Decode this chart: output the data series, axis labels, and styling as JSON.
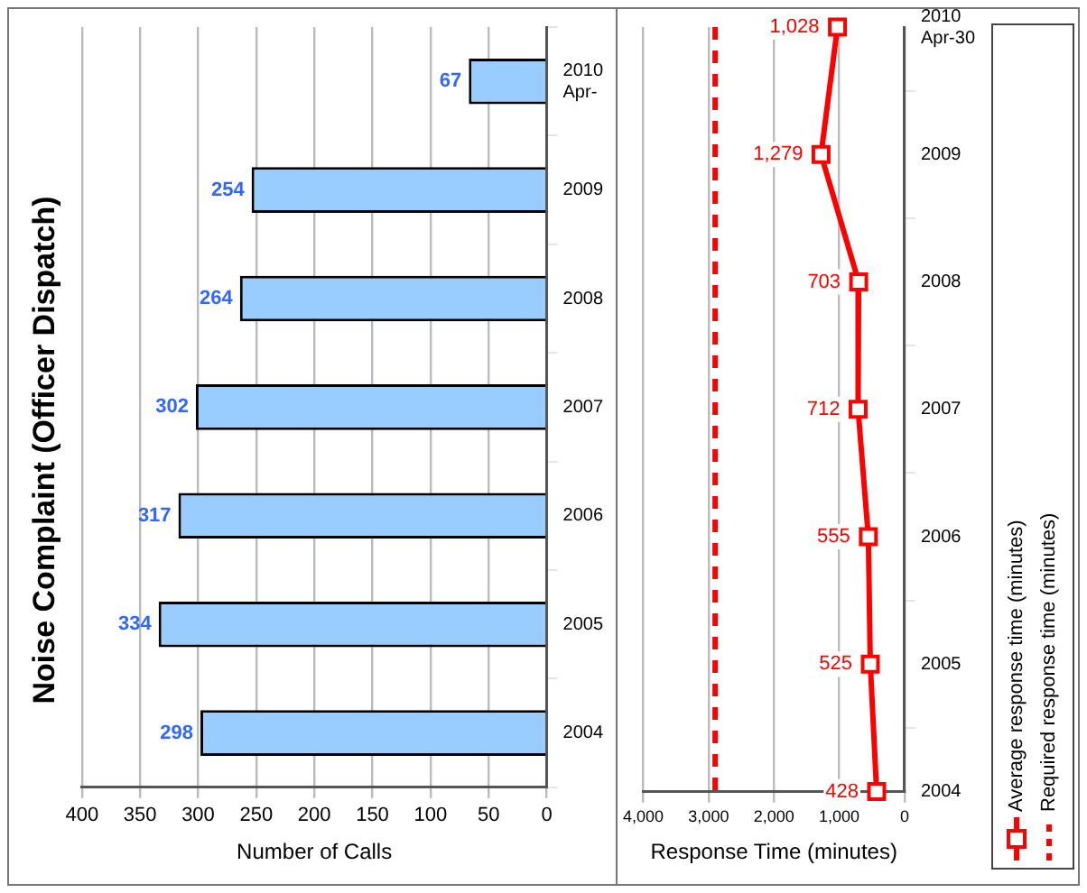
{
  "chart_data": [
    {
      "type": "bar",
      "orientation": "horizontal",
      "title": "Noise Complaint (Officer Dispatch)",
      "xlabel": "Number of Calls",
      "categories": [
        "2010 Apr-",
        "2009",
        "2008",
        "2007",
        "2006",
        "2005",
        "2004"
      ],
      "values": [
        67,
        254,
        264,
        302,
        317,
        334,
        298
      ],
      "color": "#99ccff",
      "xlim": [
        400,
        0
      ],
      "xticks": [
        400,
        350,
        300,
        250,
        200,
        150,
        100,
        50,
        0
      ],
      "grid": "x",
      "data_labels": true
    },
    {
      "type": "line",
      "orientation": "horizontal",
      "xlabel": "Response Time (minutes)",
      "categories": [
        "2010 Apr-30",
        "2009",
        "2008",
        "2007",
        "2006",
        "2005",
        "2004"
      ],
      "series": [
        {
          "name": "Average response time (minutes)",
          "color": "#ff0000",
          "values": [
            1028,
            1279,
            703,
            712,
            555,
            525,
            428
          ],
          "marker": "square",
          "line_style": "solid",
          "value_labels": [
            "1,028",
            "1,279",
            "703",
            "712",
            "555",
            "525",
            "428"
          ]
        },
        {
          "name": "Required response time (minutes)",
          "color": "#ff0000",
          "values": [
            2900,
            2900,
            2900,
            2900,
            2900,
            2900,
            2900
          ],
          "marker": "none",
          "line_style": "dashed"
        }
      ],
      "xlim": [
        4000,
        0
      ],
      "xticks": [
        {
          "value": 4000,
          "label": "4,000"
        },
        {
          "value": 3000,
          "label": "3,000"
        },
        {
          "value": 2000,
          "label": "2,000"
        },
        {
          "value": 1000,
          "label": "1,000"
        },
        0
      ],
      "grid": "x",
      "legend": "right"
    }
  ]
}
